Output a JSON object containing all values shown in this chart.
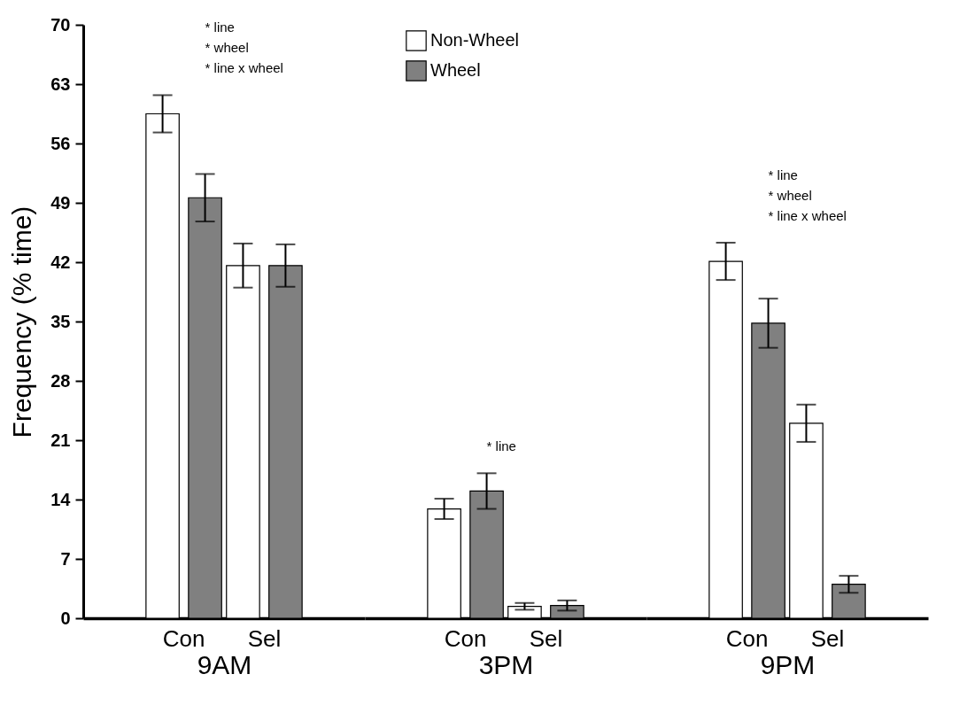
{
  "chart_data": [
    {
      "type": "bar",
      "xlabel": "9AM",
      "ylabel": "Frequency (% time)",
      "categories": [
        "Con",
        "Sel"
      ],
      "ylim": [
        0,
        70
      ],
      "yticks": [
        0,
        7,
        14,
        21,
        28,
        35,
        42,
        49,
        56,
        63,
        70
      ],
      "grid": false,
      "series": [
        {
          "name": "Non-Wheel",
          "color": "#ffffff",
          "values": [
            59.5,
            41.6
          ],
          "errors": [
            2.2,
            2.6
          ]
        },
        {
          "name": "Wheel",
          "color": "#808080",
          "values": [
            49.6,
            41.6
          ],
          "errors": [
            2.8,
            2.5
          ]
        }
      ],
      "annotations": [
        "*   line",
        "*   wheel",
        "*   line x wheel"
      ],
      "legend": "top"
    },
    {
      "type": "bar",
      "xlabel": "3PM",
      "categories": [
        "Con",
        "Sel"
      ],
      "ylim": [
        0,
        70
      ],
      "yticks": [
        0,
        7,
        14,
        21,
        28,
        35,
        42,
        49,
        56,
        63,
        70
      ],
      "grid": false,
      "tick_labels": "x",
      "series": [
        {
          "name": "Non-Wheel",
          "color": "#ffffff",
          "values": [
            12.9,
            1.4
          ],
          "errors": [
            1.2,
            0.4
          ]
        },
        {
          "name": "Wheel",
          "color": "#808080",
          "values": [
            15.0,
            1.5
          ],
          "errors": [
            2.1,
            0.6
          ]
        }
      ],
      "annotations": [
        "*   line"
      ]
    },
    {
      "type": "bar",
      "xlabel": "9PM",
      "categories": [
        "Con",
        "Sel"
      ],
      "ylim": [
        0,
        70
      ],
      "yticks": [
        0,
        7,
        14,
        21,
        28,
        35,
        42,
        49,
        56,
        63,
        70
      ],
      "grid": false,
      "tick_labels": "x",
      "series": [
        {
          "name": "Non-Wheel",
          "color": "#ffffff",
          "values": [
            42.1,
            23.0
          ],
          "errors": [
            2.2,
            2.2
          ]
        },
        {
          "name": "Wheel",
          "color": "#808080",
          "values": [
            34.8,
            4.0
          ],
          "errors": [
            2.9,
            1.0
          ]
        }
      ],
      "annotations": [
        "*   line",
        "*   wheel",
        "*   line x wheel"
      ]
    }
  ]
}
